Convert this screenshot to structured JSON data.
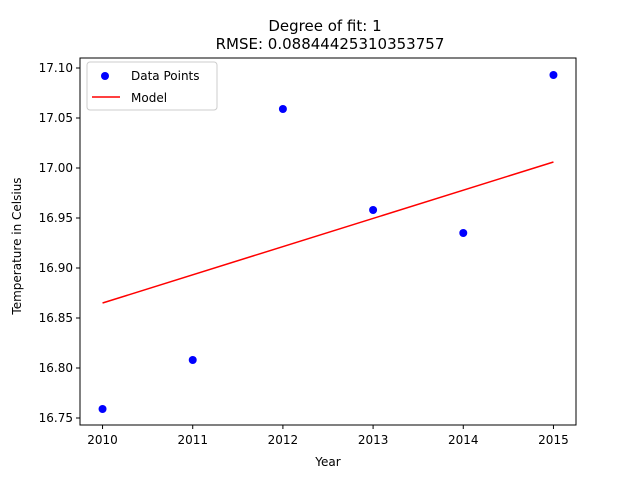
{
  "chart_data": {
    "type": "scatter",
    "title_line1": "Degree of fit: 1",
    "title_line2": "RMSE: 0.08844425310353757",
    "xlabel": "Year",
    "ylabel": "Temperature in Celsius",
    "xlim": [
      2009.75,
      2015.25
    ],
    "ylim": [
      16.743,
      17.11
    ],
    "xticks": [
      2010,
      2011,
      2012,
      2013,
      2014,
      2015
    ],
    "xtick_labels": [
      "2010",
      "2011",
      "2012",
      "2013",
      "2014",
      "2015"
    ],
    "yticks": [
      16.75,
      16.8,
      16.85,
      16.9,
      16.95,
      17.0,
      17.05,
      17.1
    ],
    "ytick_labels": [
      "16.75",
      "16.80",
      "16.85",
      "16.90",
      "16.95",
      "17.00",
      "17.05",
      "17.10"
    ],
    "grid": false,
    "legend_position": "top-left",
    "series": [
      {
        "name": "Data Points",
        "kind": "scatter",
        "color": "#0000ff",
        "x": [
          2010,
          2011,
          2012,
          2013,
          2014,
          2015
        ],
        "y": [
          16.759,
          16.808,
          17.059,
          16.958,
          16.935,
          17.093
        ]
      },
      {
        "name": "Model",
        "kind": "line",
        "color": "#ff0000",
        "x": [
          2010,
          2015
        ],
        "y": [
          16.865,
          17.006
        ]
      }
    ]
  }
}
